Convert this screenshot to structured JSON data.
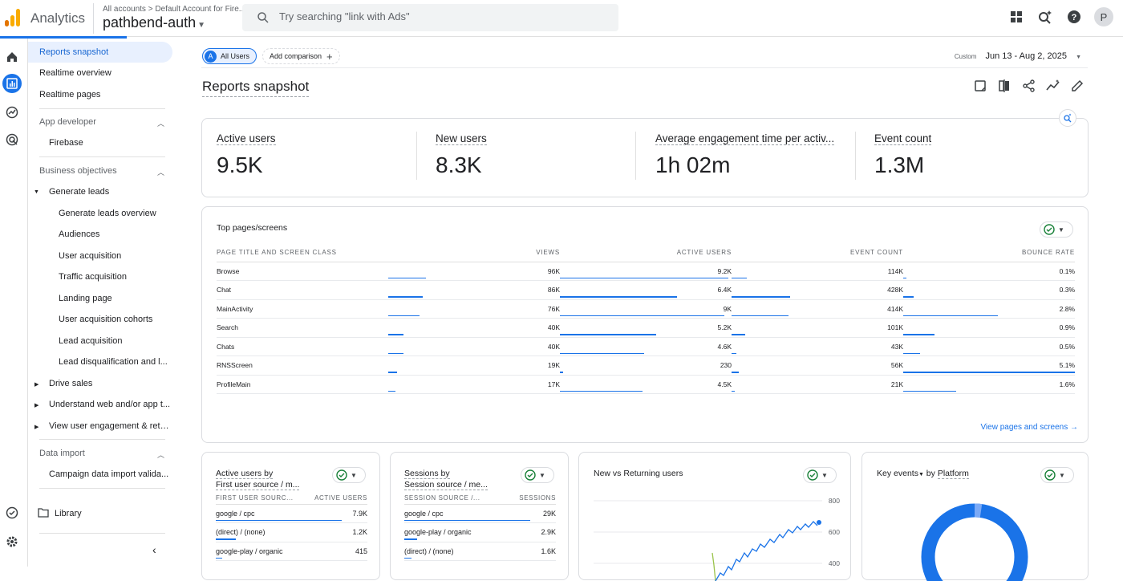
{
  "app": {
    "name": "Analytics",
    "breadcrumb": "All accounts > Default Account for Fire...",
    "property": "pathbend-auth",
    "search_placeholder": "Try searching \"link with Ads\"",
    "avatar_letter": "P"
  },
  "nav": {
    "reports_snapshot": "Reports snapshot",
    "realtime_overview": "Realtime overview",
    "realtime_pages": "Realtime pages",
    "app_developer": "App developer",
    "firebase": "Firebase",
    "business_objectives": "Business objectives",
    "generate_leads": "Generate leads",
    "generate_leads_overview": "Generate leads overview",
    "audiences": "Audiences",
    "user_acquisition": "User acquisition",
    "traffic_acquisition": "Traffic acquisition",
    "landing_page": "Landing page",
    "user_acquisition_cohorts": "User acquisition cohorts",
    "lead_acquisition": "Lead acquisition",
    "lead_disqualification": "Lead disqualification and l...",
    "drive_sales": "Drive sales",
    "understand_web": "Understand web and/or app t...",
    "view_user_engagement": "View user engagement & rete...",
    "data_import": "Data import",
    "campaign_data_import": "Campaign data import valida...",
    "library": "Library"
  },
  "toolbar": {
    "all_users_letter": "A",
    "all_users": "All Users",
    "add_comparison": "Add comparison",
    "date_label": "Custom",
    "date_range": "Jun 13 - Aug 2, 2025"
  },
  "page_title": "Reports snapshot",
  "kpis": [
    {
      "label": "Active users",
      "value": "9.5K"
    },
    {
      "label": "New users",
      "value": "8.3K"
    },
    {
      "label": "Average engagement time per activ...",
      "value": "1h 02m"
    },
    {
      "label": "Event count",
      "value": "1.3M"
    }
  ],
  "top_pages": {
    "title": "Top pages/screens",
    "headers": [
      "PAGE TITLE AND SCREEN CLASS",
      "VIEWS",
      "ACTIVE USERS",
      "EVENT COUNT",
      "BOUNCE RATE"
    ],
    "rows": [
      {
        "name": "Browse",
        "views": "96K",
        "active": "9.2K",
        "events": "114K",
        "bounce": "0.1%",
        "b_views": 0.22,
        "b_active": 0.98,
        "b_events": 0.09,
        "b_bounce": 0.02
      },
      {
        "name": "Chat",
        "views": "86K",
        "active": "6.4K",
        "events": "428K",
        "bounce": "0.3%",
        "b_views": 0.2,
        "b_active": 0.68,
        "b_events": 0.34,
        "b_bounce": 0.06
      },
      {
        "name": "MainActivity",
        "views": "76K",
        "active": "9K",
        "events": "414K",
        "bounce": "2.8%",
        "b_views": 0.18,
        "b_active": 0.96,
        "b_events": 0.33,
        "b_bounce": 0.55
      },
      {
        "name": "Search",
        "views": "40K",
        "active": "5.2K",
        "events": "101K",
        "bounce": "0.9%",
        "b_views": 0.09,
        "b_active": 0.56,
        "b_events": 0.08,
        "b_bounce": 0.18
      },
      {
        "name": "Chats",
        "views": "40K",
        "active": "4.6K",
        "events": "43K",
        "bounce": "0.5%",
        "b_views": 0.09,
        "b_active": 0.49,
        "b_events": 0.03,
        "b_bounce": 0.1
      },
      {
        "name": "RNSScreen",
        "views": "19K",
        "active": "230",
        "events": "56K",
        "bounce": "5.1%",
        "b_views": 0.05,
        "b_active": 0.02,
        "b_events": 0.04,
        "b_bounce": 1.0
      },
      {
        "name": "ProfileMain",
        "views": "17K",
        "active": "4.5K",
        "events": "21K",
        "bounce": "1.6%",
        "b_views": 0.04,
        "b_active": 0.48,
        "b_events": 0.02,
        "b_bounce": 0.31
      }
    ],
    "link": "View pages and screens"
  },
  "card_users_source": {
    "title_line1": "Active users by",
    "title_line2": "First user source / m...",
    "col1": "FIRST USER SOURC...",
    "col2": "ACTIVE USERS",
    "rows": [
      {
        "name": "google / cpc",
        "value": "7.9K",
        "bar": 1.0
      },
      {
        "name": "(direct) / (none)",
        "value": "1.2K",
        "bar": 0.16
      },
      {
        "name": "google-play / organic",
        "value": "415",
        "bar": 0.05
      }
    ]
  },
  "card_sessions": {
    "title_line1": "Sessions by",
    "title_line2": "Session source / me...",
    "col1": "SESSION SOURCE /...",
    "col2": "SESSIONS",
    "rows": [
      {
        "name": "google / cpc",
        "value": "29K",
        "bar": 1.0
      },
      {
        "name": "google-play / organic",
        "value": "2.9K",
        "bar": 0.1
      },
      {
        "name": "(direct) / (none)",
        "value": "1.6K",
        "bar": 0.06
      }
    ]
  },
  "card_new_returning": {
    "title": "New vs Returning users",
    "ticks": [
      "800",
      "600",
      "400"
    ]
  },
  "card_key_events": {
    "title_a": "Key events",
    "title_b": " by ",
    "title_c": "Platform"
  },
  "colors": {
    "accent": "#1a73e8",
    "green": "#188038"
  }
}
